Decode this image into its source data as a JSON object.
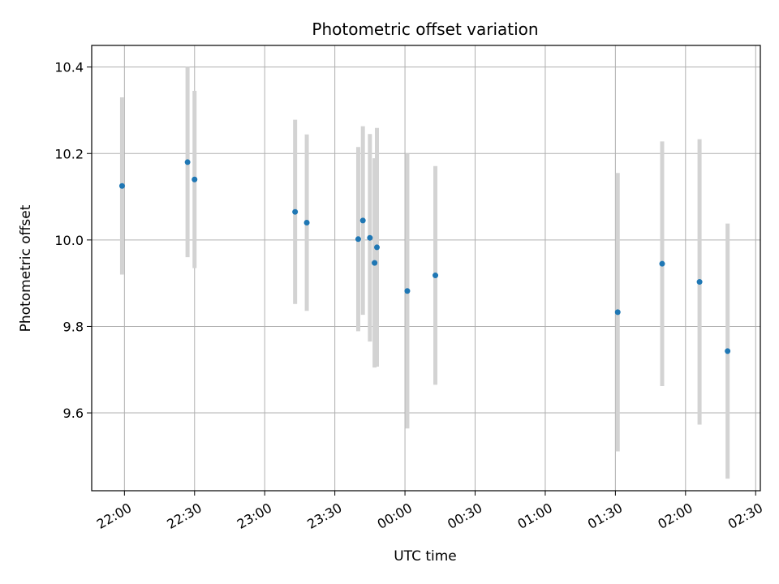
{
  "chart_data": {
    "type": "scatter",
    "title": "Photometric offset variation",
    "xlabel": "UTC time",
    "ylabel": "Photometric offset",
    "x_ticks": [
      "22:00",
      "22:30",
      "23:00",
      "23:30",
      "00:00",
      "00:30",
      "01:00",
      "01:30",
      "02:00",
      "02:30"
    ],
    "y_ticks": [
      "9.6",
      "9.8",
      "10.0",
      "10.2",
      "10.4"
    ],
    "x_axis_start": "21:46",
    "x_axis_end": "02:32",
    "ylim": [
      9.42,
      10.45
    ],
    "grid": true,
    "point_color": "#1f77b4",
    "errorbar_color": "#d3d3d3",
    "x_tick_label_rotation_deg": 30,
    "series": [
      {
        "points": [
          {
            "x": "21:59",
            "y": 10.125,
            "err": 0.205
          },
          {
            "x": "22:27",
            "y": 10.18,
            "err": 0.22
          },
          {
            "x": "22:30",
            "y": 10.14,
            "err": 0.205
          },
          {
            "x": "23:13",
            "y": 10.065,
            "err": 0.213
          },
          {
            "x": "23:18",
            "y": 10.04,
            "err": 0.204
          },
          {
            "x": "23:40",
            "y": 10.002,
            "err": 0.213
          },
          {
            "x": "23:42",
            "y": 10.045,
            "err": 0.218
          },
          {
            "x": "23:45",
            "y": 10.005,
            "err": 0.24
          },
          {
            "x": "23:47",
            "y": 9.947,
            "err": 0.242
          },
          {
            "x": "23:48",
            "y": 9.983,
            "err": 0.276
          },
          {
            "x": "00:01",
            "y": 9.882,
            "err": 0.318
          },
          {
            "x": "00:13",
            "y": 9.918,
            "err": 0.253
          },
          {
            "x": "01:31",
            "y": 9.833,
            "err": 0.322
          },
          {
            "x": "01:50",
            "y": 9.945,
            "err": 0.283
          },
          {
            "x": "02:06",
            "y": 9.903,
            "err": 0.33
          },
          {
            "x": "02:18",
            "y": 9.743,
            "err": 0.295
          }
        ]
      }
    ]
  }
}
